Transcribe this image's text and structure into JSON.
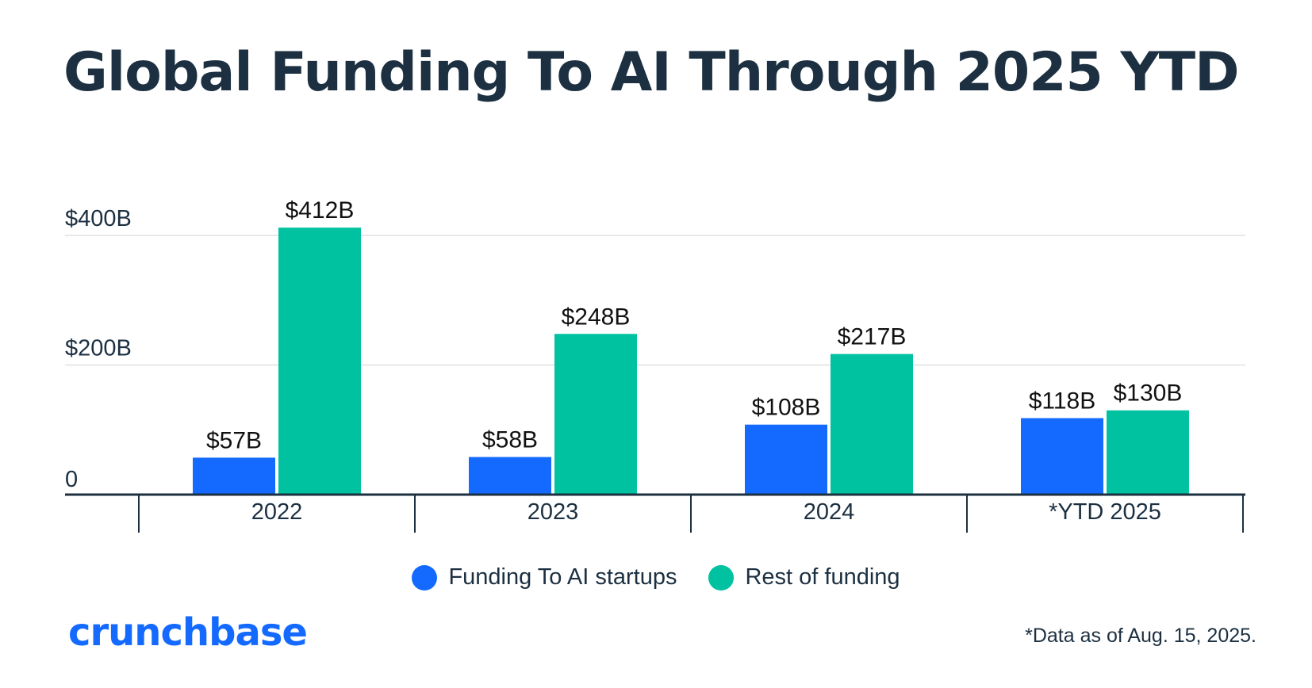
{
  "colors": {
    "ai_series": "#146aff",
    "rest_series": "#00c2a0",
    "text": "#1c3041",
    "grid": "#e6e8ea",
    "axis": "#1c3041"
  },
  "brand": {
    "logo_text": "crunchbase"
  },
  "footnote": "*Data as of Aug. 15, 2025.",
  "chart_data": {
    "type": "bar",
    "title": "Global Funding To AI Through 2025 YTD",
    "xlabel": "",
    "ylabel": "",
    "categories": [
      "2022",
      "2023",
      "2024",
      "*YTD 2025"
    ],
    "series": [
      {
        "name": "Funding To AI startups",
        "color": "#146aff",
        "values": [
          57,
          58,
          108,
          118
        ],
        "labels": [
          "$57B",
          "$58B",
          "$108B",
          "$118B"
        ]
      },
      {
        "name": "Rest of funding",
        "color": "#00c2a0",
        "values": [
          412,
          248,
          217,
          130
        ],
        "labels": [
          "$412B",
          "$248B",
          "$217B",
          "$130B"
        ]
      }
    ],
    "ylim": [
      0,
      400
    ],
    "y_ticks": [
      {
        "value": 0,
        "label": "0"
      },
      {
        "value": 200,
        "label": "$200B"
      },
      {
        "value": 400,
        "label": "$400B"
      }
    ],
    "grid": true,
    "legend_position": "bottom-center"
  }
}
